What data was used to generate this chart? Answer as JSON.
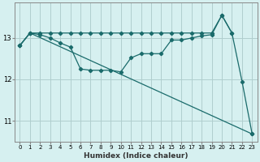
{
  "xlabel": "Humidex (Indice chaleur)",
  "bg_color": "#d6f0f0",
  "grid_color": "#b0cece",
  "line_color": "#1a6b6b",
  "xlim": [
    -0.5,
    23.5
  ],
  "ylim": [
    10.5,
    13.85
  ],
  "yticks": [
    11,
    12,
    13
  ],
  "xticks": [
    0,
    1,
    2,
    3,
    4,
    5,
    6,
    7,
    8,
    9,
    10,
    11,
    12,
    13,
    14,
    15,
    16,
    17,
    18,
    19,
    20,
    21,
    22,
    23
  ],
  "line1_x": [
    0,
    1,
    2,
    3,
    4,
    5,
    6,
    7,
    8,
    9,
    10,
    11,
    12,
    13,
    14,
    15,
    16,
    17,
    18,
    19,
    20,
    21
  ],
  "line1_y": [
    12.82,
    13.12,
    13.12,
    13.12,
    13.12,
    13.12,
    13.12,
    13.12,
    13.12,
    13.12,
    13.12,
    13.12,
    13.12,
    13.12,
    13.12,
    13.12,
    13.12,
    13.12,
    13.12,
    13.12,
    13.55,
    13.12
  ],
  "line2_x": [
    0,
    1,
    2,
    3,
    4,
    5,
    6,
    7,
    8,
    9,
    10,
    11,
    12,
    13,
    14,
    15,
    16,
    17,
    18,
    19,
    20,
    21,
    22,
    23
  ],
  "line2_y": [
    12.82,
    13.12,
    13.08,
    13.0,
    12.88,
    12.78,
    12.25,
    12.22,
    12.22,
    12.22,
    12.18,
    12.52,
    12.62,
    12.62,
    12.62,
    12.95,
    12.95,
    13.0,
    13.05,
    13.08,
    13.55,
    13.12,
    11.95,
    10.68
  ],
  "line3_x": [
    0,
    1,
    23
  ],
  "line3_y": [
    12.82,
    13.12,
    10.68
  ]
}
